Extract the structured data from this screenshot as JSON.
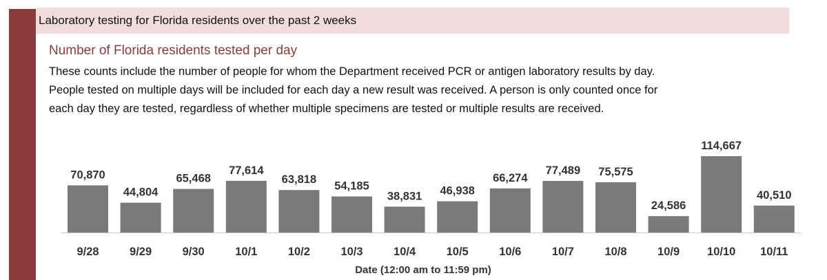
{
  "header": {
    "title": "Laboratory testing for Florida residents over the past 2 weeks"
  },
  "section": {
    "title": "Number of Florida residents tested per day",
    "description_lines": [
      "These counts include the number of people for whom the Department received PCR or antigen laboratory results by day.",
      "People tested on multiple days will be included for each day a new result was received. A person is only counted once for",
      "each day they are tested, regardless of whether multiple specimens are tested or multiple results are received."
    ]
  },
  "colors": {
    "accent": "#8d3a3a",
    "header_band": "#f2dcdc",
    "bar": "#7a7a7a"
  },
  "chart_data": {
    "type": "bar",
    "categories": [
      "9/28",
      "9/29",
      "9/30",
      "10/1",
      "10/2",
      "10/3",
      "10/4",
      "10/5",
      "10/6",
      "10/7",
      "10/8",
      "10/9",
      "10/10",
      "10/11"
    ],
    "values": [
      70870,
      44804,
      65468,
      77614,
      63818,
      54185,
      38831,
      46938,
      66274,
      77489,
      75575,
      24586,
      114667,
      40510
    ],
    "value_labels": [
      "70,870",
      "44,804",
      "65,468",
      "77,614",
      "63,818",
      "54,185",
      "38,831",
      "46,938",
      "66,274",
      "77,489",
      "75,575",
      "24,586",
      "114,667",
      "40,510"
    ],
    "title": "",
    "xlabel": "Date (12:00 am to 11:59 pm)",
    "ylabel": "",
    "ylim": [
      0,
      114667
    ],
    "grid": false,
    "legend": "none"
  }
}
